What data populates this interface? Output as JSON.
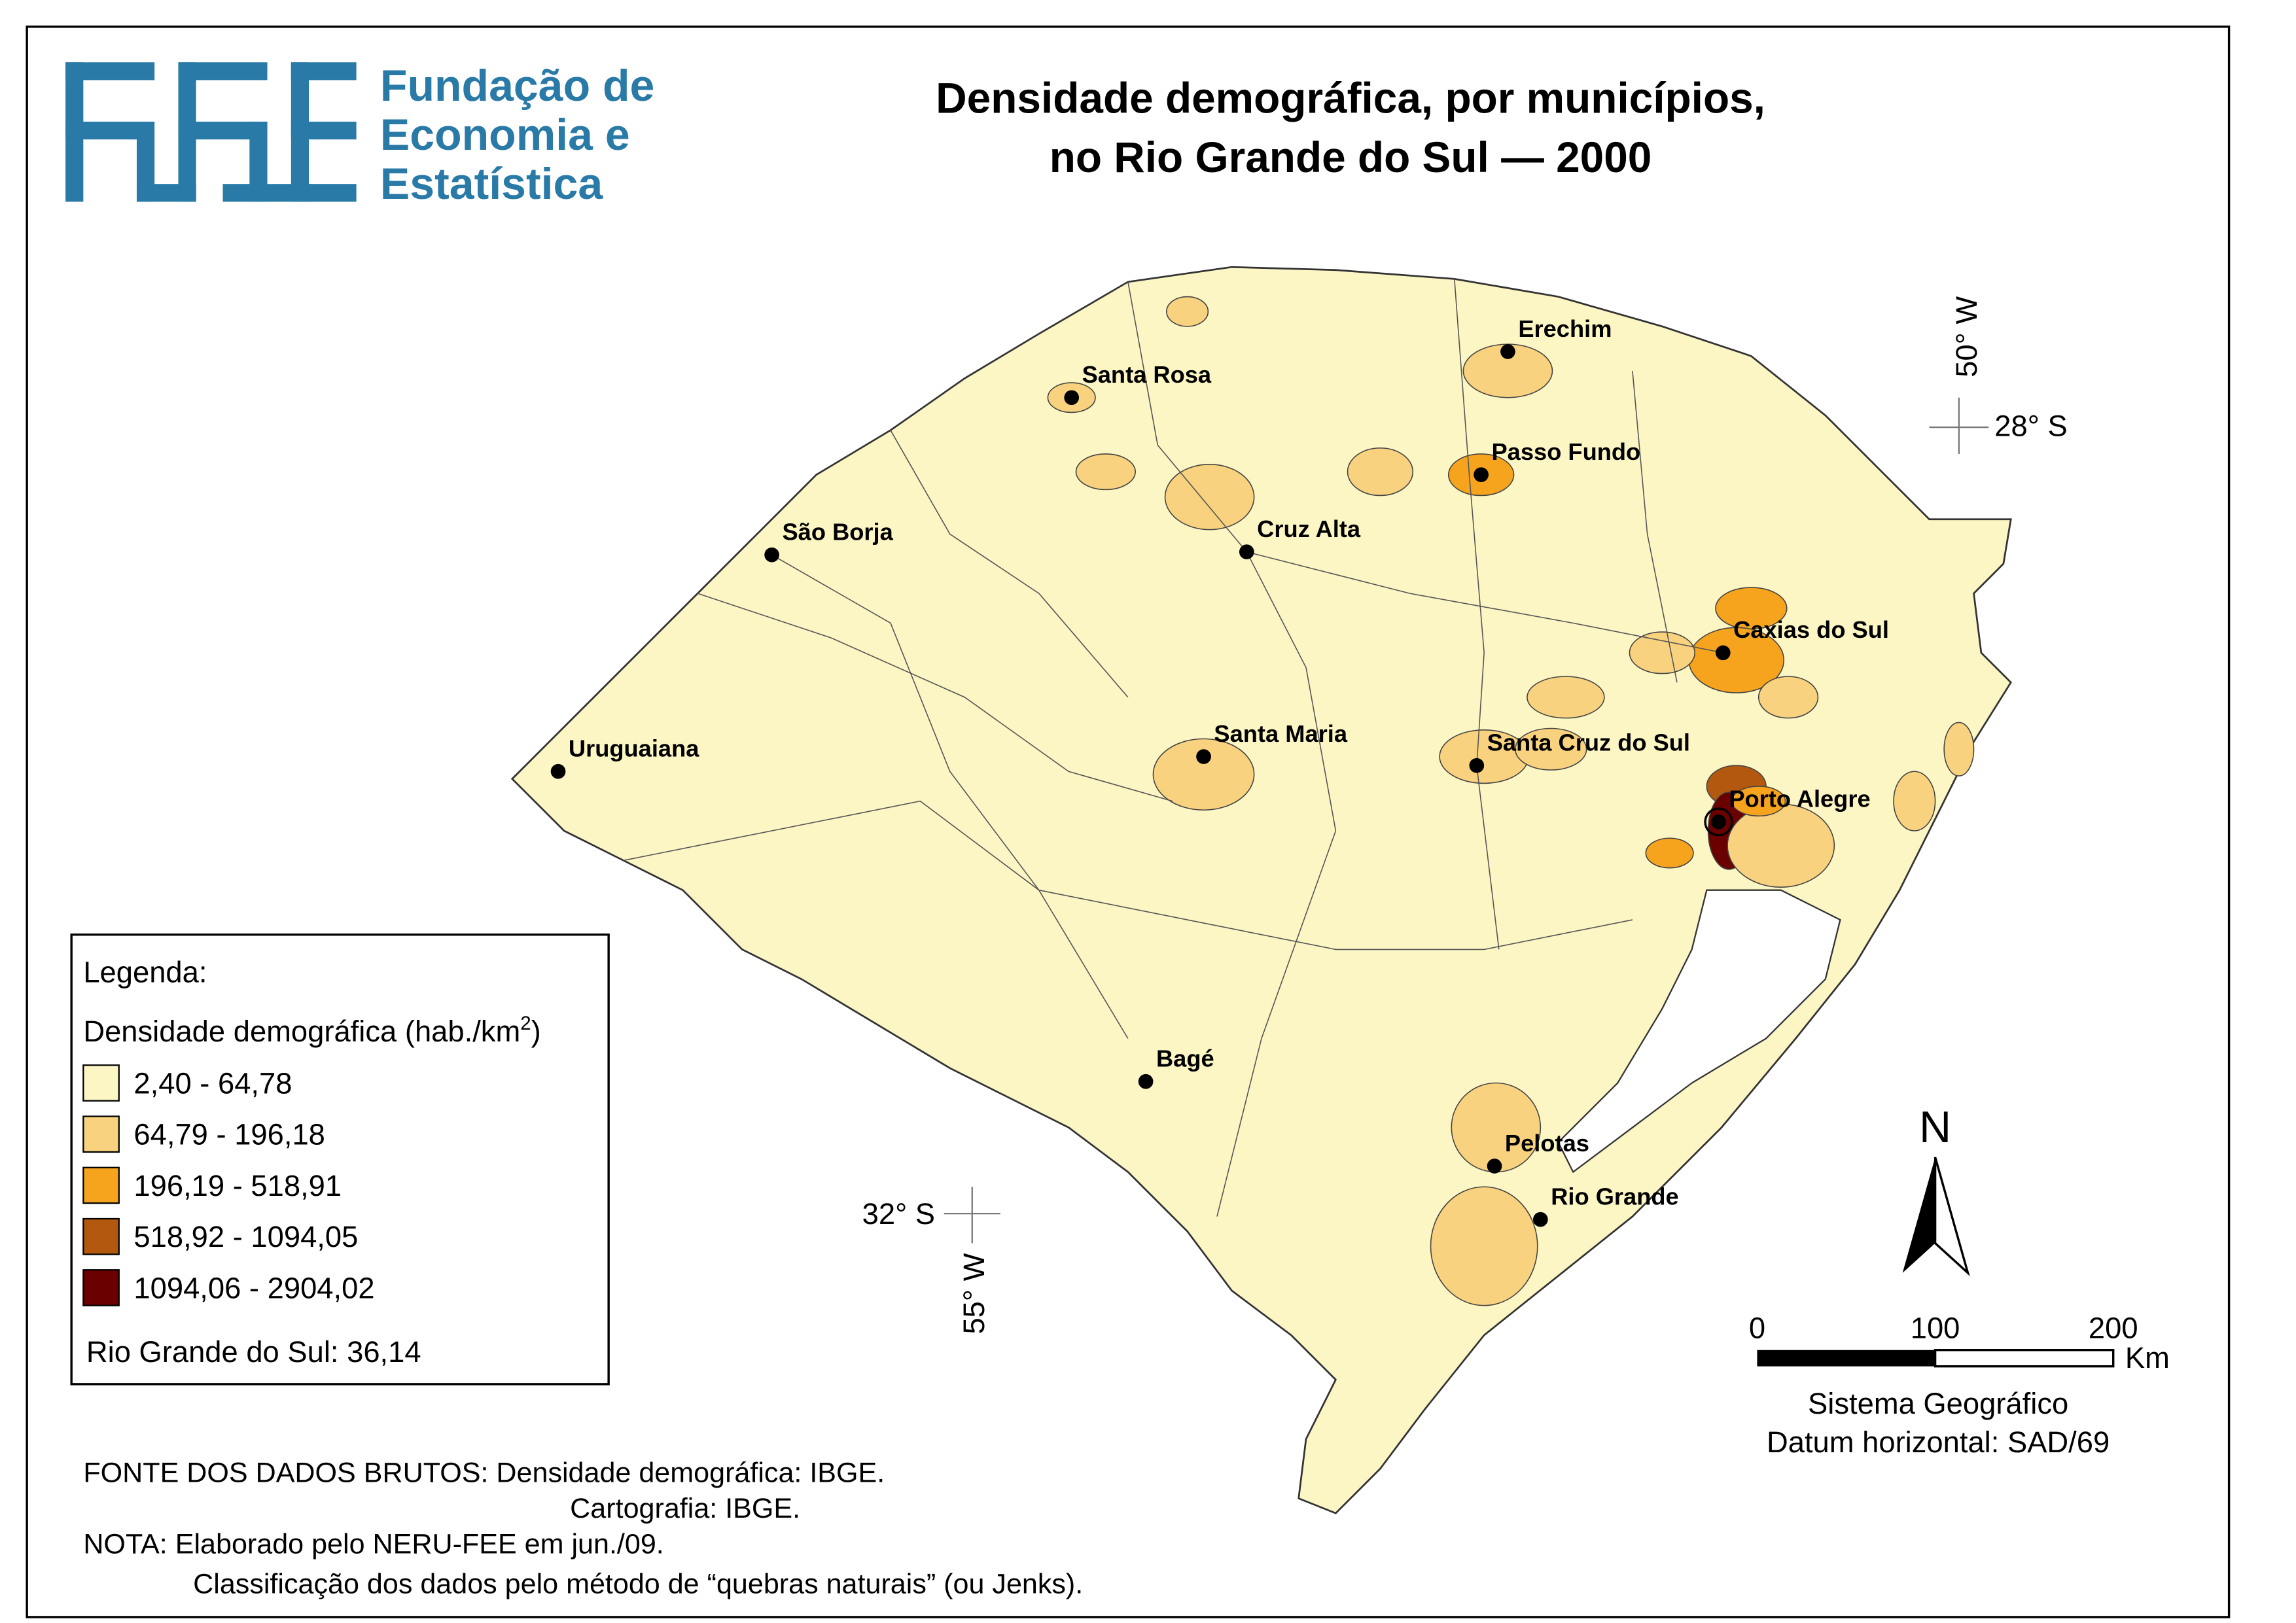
{
  "header": {
    "logo_lines": [
      "Fundação de",
      "Economia e",
      "Estatística"
    ],
    "title_lines": [
      "Densidade demográfica, por municípios,",
      "no Rio Grande do Sul — 2000"
    ]
  },
  "map": {
    "cities": [
      "Erechim",
      "Santa Rosa",
      "Passo Fundo",
      "São Borja",
      "Cruz Alta",
      "Caxias do Sul",
      "Uruguaiana",
      "Santa Maria",
      "Santa Cruz do Sul",
      "Porto Alegre",
      "Bagé",
      "Pelotas",
      "Rio Grande"
    ],
    "coordinates": {
      "lon_north": "50° W",
      "lat_north": "28° S",
      "lat_south": "32° S",
      "lon_south": "55° W"
    },
    "north": "N",
    "scale": {
      "ticks": [
        0,
        100,
        200
      ],
      "unit": "Km"
    },
    "projection": [
      "Sistema Geográfico",
      "Datum horizontal: SAD/69"
    ]
  },
  "legend": {
    "title": "Legenda:",
    "subtitle": "Densidade demográfica (hab./km",
    "subtitle_sup": "2",
    "subtitle_end": ")",
    "classes": [
      {
        "label": "2,40 - 64,78",
        "color": "#fcf5c4"
      },
      {
        "label": "64,79 - 196,18",
        "color": "#f8d27e"
      },
      {
        "label": "196,19 - 518,91",
        "color": "#f6a41e"
      },
      {
        "label": "518,92 - 1094,05",
        "color": "#b3590f"
      },
      {
        "label": "1094,06 - 2904,02",
        "color": "#6b0000"
      }
    ],
    "total": "Rio Grande do Sul: 36,14"
  },
  "notes": [
    "FONTE DOS DADOS BRUTOS: Densidade demográfica: IBGE.",
    "Cartografia: IBGE.",
    "NOTA: Elaborado pelo NERU-FEE em jun./09.",
    "Classificação dos dados pelo método de “quebras naturais” (ou Jenks)."
  ]
}
